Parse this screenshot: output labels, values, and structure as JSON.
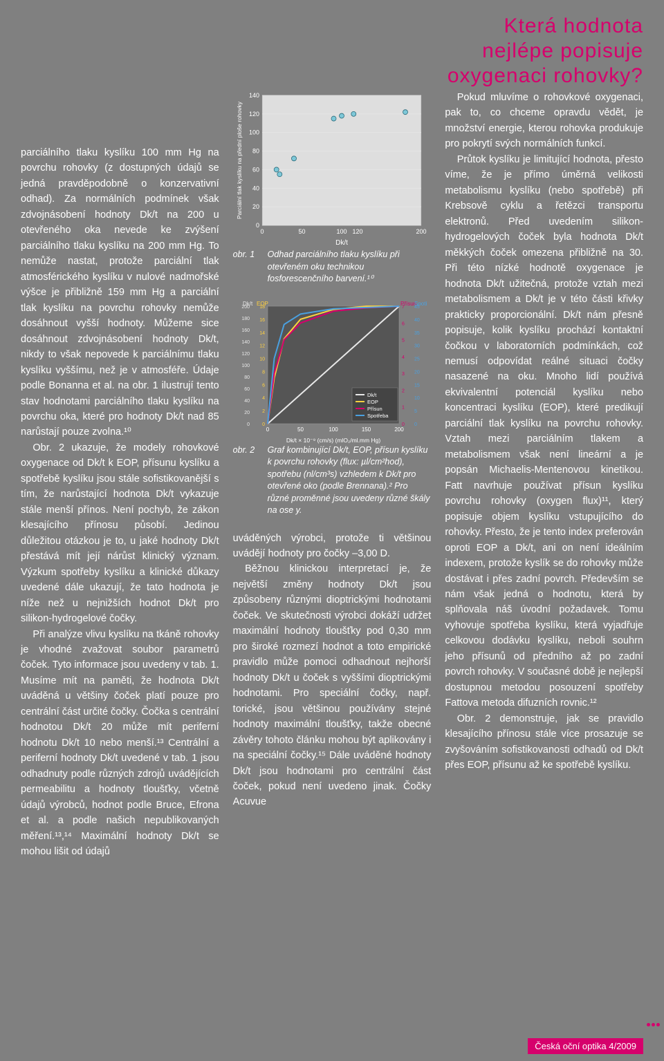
{
  "title": "Která hodnota nejlépe popisuje oxygenaci rohovky?",
  "colors": {
    "accent": "#d6006c",
    "background": "#808080",
    "chart_bg": "#4b4b4b",
    "grid": "#e0e0e0",
    "axis_text": "#ffffff",
    "scatter_point": "#7ec8d8"
  },
  "left_column": {
    "p1": "parciálního tlaku kyslíku 100 mm Hg na povrchu rohovky (z dostupných údajů se jedná pravděpodobně o konzervativní odhad). Za normálních podmínek však zdvojnásobení hodnoty Dk/t na 200 u otevřeného oka nevede ke zvýšení parciálního tlaku kyslíku na 200 mm Hg. To nemůže nastat, protože parciální tlak atmosférického kyslíku v nulové nadmořské výšce je přibližně 159 mm Hg a parciální tlak kyslíku na povrchu rohovky nemůže dosáhnout vyšší hodnoty. Můžeme sice dosáhnout zdvojnásobení hodnoty Dk/t, nikdy to však nepovede k parciálnímu tlaku kyslíku vyššímu, než je v atmosféře. Údaje podle Bonanna et al. na obr. 1 ilustrují tento stav hodnotami parciálního tlaku kyslíku na povrchu oka, které pro hodnoty Dk/t nad 85 narůstají pouze zvolna.¹⁰",
    "p2": "Obr. 2 ukazuje, že modely rohovkové oxygenace od Dk/t k EOP, přísunu kyslíku a spotřebě kyslíku jsou stále sofistikovanější s tím, že narůstající hodnota Dk/t vykazuje stále menší přínos. Není pochyb, že zákon klesajícího přínosu působí. Jedinou důležitou otázkou je to, u jaké hodnoty Dk/t přestává mít její nárůst klinický význam. Výzkum spotřeby kyslíku a klinické důkazy uvedené dále ukazují, že tato hodnota je níže než u nejnižších hodnot Dk/t pro silikon-hydrogelové čočky.",
    "p3": "Při analýze vlivu kyslíku na tkáně rohovky je vhodné zvažovat soubor parametrů čoček. Tyto informace jsou uvedeny v tab. 1. Musíme mít na paměti, že hodnota Dk/t uváděná u většiny čoček platí pouze pro centrální část určité čočky. Čočka s centrální hodnotou Dk/t 20 může mít periferní hodnotu Dk/t 10 nebo menší.¹³ Centrální a periferní hodnoty Dk/t uvedené v tab. 1 jsou odhadnuty podle různých zdrojů uvádějících permeabilitu a hodnoty tloušťky, včetně údajů výrobců, hodnot podle Bruce, Efrona et al. a podle našich nepublikovaných měření.¹³,¹⁴ Maximální hodnoty Dk/t se mohou lišit od údajů"
  },
  "chart1": {
    "type": "scatter",
    "ylabel": "Parciální tlak kyslíku na přední ploše rohovky",
    "xlabel": "Dk/t",
    "ylim": [
      0,
      140
    ],
    "ytick_step": 20,
    "xlim": [
      0,
      200
    ],
    "xticks": [
      0,
      50,
      100,
      120,
      200
    ],
    "points_x": [
      18,
      22,
      40,
      90,
      100,
      115,
      180
    ],
    "points_y": [
      60,
      55,
      72,
      115,
      118,
      120,
      122
    ],
    "point_color": "#7ec8d8",
    "grid_color": "#e8e8e8",
    "background_color": "#5a5a5a",
    "plot_background": "#ffffff"
  },
  "fig1": {
    "label": "obr. 1",
    "text": "Odhad parciálního tlaku kyslíku při otevřeném oku technikou fosforescenčního barvení.¹⁰"
  },
  "chart2": {
    "type": "line-multi",
    "xlabel": "Dk/t × 10⁻⁹ (cm/s) (mlO₂/ml.mm Hg)",
    "xlim": [
      0,
      200
    ],
    "xticks": [
      0,
      50,
      100,
      150,
      200
    ],
    "left_axes": [
      {
        "label": "Dk/t",
        "color": "#e8e8e8",
        "ticks": [
          0,
          20,
          40,
          60,
          80,
          100,
          120,
          140,
          160,
          180,
          200
        ]
      },
      {
        "label": "EOP",
        "color": "#ffd040",
        "ticks": [
          0,
          2,
          4,
          6,
          8,
          10,
          12,
          14,
          16,
          18
        ]
      }
    ],
    "right_axes": [
      {
        "label": "Přísun",
        "color": "#d6006c",
        "ticks": [
          0,
          1,
          2,
          3,
          4,
          5,
          6,
          7
        ]
      },
      {
        "label": "Spotřeba",
        "color": "#4aa0e0",
        "ticks": [
          0,
          5,
          10,
          15,
          20,
          25,
          30,
          35,
          40,
          45
        ]
      }
    ],
    "series": [
      {
        "name": "Dk/t",
        "color": "#e8e8e8",
        "x": [
          0,
          50,
          100,
          150,
          200
        ],
        "y": [
          0,
          50,
          100,
          150,
          200
        ]
      },
      {
        "name": "EOP",
        "color": "#ffd040",
        "x": [
          0,
          10,
          25,
          50,
          100,
          150,
          200
        ],
        "y": [
          0,
          7,
          13,
          16,
          17.5,
          18,
          18
        ]
      },
      {
        "name": "Přísun",
        "color": "#d6006c",
        "x": [
          0,
          10,
          25,
          50,
          100,
          150,
          200
        ],
        "y": [
          0,
          3,
          5,
          6,
          6.7,
          6.9,
          7
        ]
      },
      {
        "name": "Spotřeba",
        "color": "#4aa0e0",
        "x": [
          0,
          10,
          25,
          50,
          100,
          150,
          200
        ],
        "y": [
          0,
          25,
          38,
          42,
          44,
          44.5,
          45
        ]
      }
    ],
    "legend": [
      "Dk/t",
      "EOP",
      "Přísun",
      "Spotřeba"
    ]
  },
  "fig2": {
    "label": "obr. 2",
    "text": "Graf kombinující Dk/t, EOP, přísun kyslíku k povrchu rohovky (flux: µl/cm²hod), spotřebu (nl/cm³s) vzhledem k Dk/t pro otevřené oko (podle Brennana).² Pro různé proměnné jsou uvedeny různé škály na ose y."
  },
  "mid_body": {
    "p1": "uváděných výrobci, protože ti většinou uvádějí hodnoty pro čočky –3,00 D.",
    "p2": "Běžnou klinickou interpretací je, že největší změny hodnoty Dk/t jsou způsobeny různými dioptrickými hodnotami čoček. Ve skutečnosti výrobci dokáží udržet maximální hodnoty tloušťky pod 0,30 mm pro široké rozmezí hodnot a toto empirické pravidlo může pomoci odhadnout nejhorší hodnoty Dk/t u čoček s vyššími dioptrickými hodnotami. Pro speciální čočky, např. torické, jsou většinou používány stejné hodnoty maximální tloušťky, takže obecné závěry tohoto článku mohou být aplikovány i na speciální čočky.¹⁵ Dále uváděné hodnoty Dk/t jsou hodnotami pro centrální část čoček, pokud není uvedeno jinak. Čočky Acuvue"
  },
  "right_column": {
    "p1": "Pokud mluvíme o rohovkové oxygenaci, pak to, co chceme opravdu vědět, je množství energie, kterou rohovka produkuje pro pokrytí svých normálních funkcí.",
    "p2": "Průtok kyslíku je limitující hodnota, přesto víme, že je přímo úměrná velikosti metabolismu kyslíku (nebo spotřebě) při Krebsově cyklu a řetězci transportu elektronů. Před uvedením silikon-hydrogelových čoček byla hodnota Dk/t měkkých čoček omezena přibližně na 30. Při této nízké hodnotě oxygenace je hodnota Dk/t užitečná, protože vztah mezi metabolismem a Dk/t je v této části křivky prakticky proporcionální. Dk/t nám přesně popisuje, kolik kyslíku prochází kontaktní čočkou v laboratorních podmínkách, což nemusí odpovídat reálné situaci čočky nasazené na oku. Mnoho lidí používá ekvivalentní potenciál kyslíku nebo koncentraci kyslíku (EOP), které predikují parciální tlak kyslíku na povrchu rohovky. Vztah mezi parciálním tlakem a metabolismem však není lineární a je popsán Michaelis-Mentenovou kinetikou. Fatt navrhuje používat přísun kyslíku povrchu rohovky (oxygen flux)¹¹, který popisuje objem kyslíku vstupujícího do rohovky. Přesto, že je tento index preferován oproti EOP a Dk/t, ani on není ideálním indexem, protože kyslík se do rohovky může dostávat i přes zadní povrch. Především se nám však jedná o hodnotu, která by splňovala náš úvodní požadavek. Tomu vyhovuje spotřeba kyslíku, která vyjadřuje celkovou dodávku kyslíku, neboli souhrn jeho přísunů od předního až po zadní povrch rohovky. V současné době je nejlepší dostupnou metodou posouzení spotřeby Fattova metoda difuzních rovnic.¹²",
    "p3": "Obr. 2 demonstruje, jak se pravidlo klesajícího přínosu stále více prosazuje se zvyšováním sofistikovanosti odhadů od Dk/t přes EOP, přísunu až ke spotřebě kyslíku."
  },
  "footer": "Česká oční optika 4/2009"
}
